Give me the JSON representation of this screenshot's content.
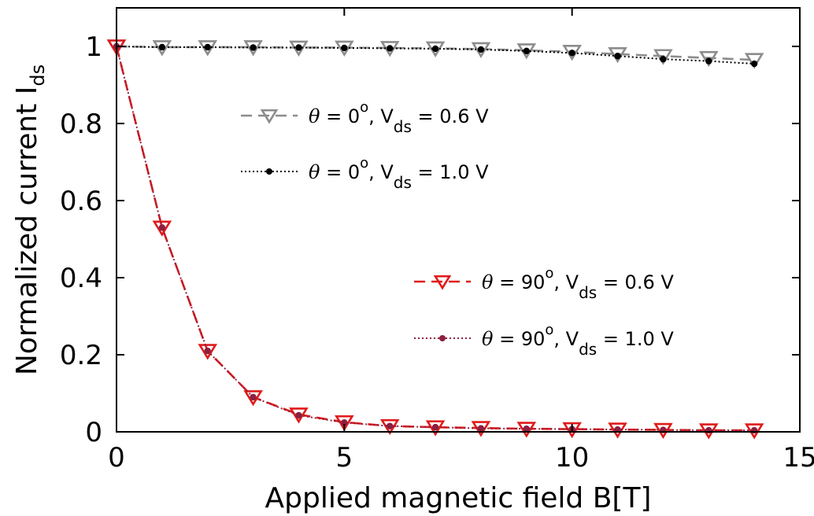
{
  "chart_data": {
    "type": "line",
    "xlabel": "Applied magnetic field B[T]",
    "ylabel": "Normalized current I",
    "ylabel_sub": "ds",
    "xlim": [
      0,
      15
    ],
    "ylim": [
      0,
      1.1
    ],
    "xticks": [
      0,
      5,
      10,
      15
    ],
    "yticks": [
      0,
      0.2,
      0.4,
      0.6,
      0.8,
      1
    ],
    "ytick_labels": [
      "0",
      "0.2",
      "0.4",
      "0.6",
      "0.8",
      "1"
    ],
    "grid": false,
    "x": [
      0,
      1,
      2,
      3,
      4,
      5,
      6,
      7,
      8,
      9,
      10,
      11,
      12,
      13,
      14
    ],
    "series": [
      {
        "name": "θ = 0°, Vds = 0.6 V",
        "legend": {
          "theta": "θ",
          "eq1": " = 0",
          "sup": "o",
          "comma": ", V",
          "sub": "ds",
          "tail": " = 0.6 V"
        },
        "color": "#8c8c8c",
        "marker": "triangle-down",
        "dash": "14,8",
        "values": [
          1.0,
          0.998,
          0.998,
          0.998,
          0.997,
          0.997,
          0.996,
          0.995,
          0.993,
          0.99,
          0.986,
          0.98,
          0.975,
          0.97,
          0.965
        ]
      },
      {
        "name": "θ = 0°, Vds = 1.0 V",
        "legend": {
          "theta": "θ",
          "eq1": " = 0",
          "sup": "o",
          "comma": ", V",
          "sub": "ds",
          "tail": " = 1.0 V"
        },
        "color": "#000000",
        "marker": "dot",
        "dash": "2,3",
        "values": [
          1.0,
          0.998,
          0.998,
          0.997,
          0.997,
          0.996,
          0.995,
          0.994,
          0.992,
          0.988,
          0.983,
          0.975,
          0.967,
          0.962,
          0.955
        ]
      },
      {
        "name": "θ = 90°, Vds = 0.6 V",
        "legend": {
          "theta": "θ",
          "eq1": " = 90",
          "sup": "o",
          "comma": ", V",
          "sub": "ds",
          "tail": " = 0.6 V"
        },
        "color": "#e01b1b",
        "marker": "triangle-down",
        "dash": "14,8",
        "values": [
          1.0,
          0.53,
          0.21,
          0.09,
          0.045,
          0.025,
          0.015,
          0.012,
          0.01,
          0.008,
          0.007,
          0.006,
          0.005,
          0.004,
          0.004
        ]
      },
      {
        "name": "θ = 90°, Vds = 1.0 V",
        "legend": {
          "theta": "θ",
          "eq1": " = 90",
          "sup": "o",
          "comma": ", V",
          "sub": "ds",
          "tail": " = 1.0 V"
        },
        "color": "#8b2040",
        "marker": "dot",
        "dash": "2,3",
        "values": [
          1.0,
          0.53,
          0.21,
          0.09,
          0.043,
          0.024,
          0.015,
          0.012,
          0.009,
          0.008,
          0.007,
          0.006,
          0.005,
          0.004,
          0.004
        ]
      }
    ],
    "legend_groups": [
      {
        "placement": "upper-middle",
        "series_indices": [
          0,
          1
        ]
      },
      {
        "placement": "center-right",
        "series_indices": [
          2,
          3
        ]
      }
    ]
  }
}
